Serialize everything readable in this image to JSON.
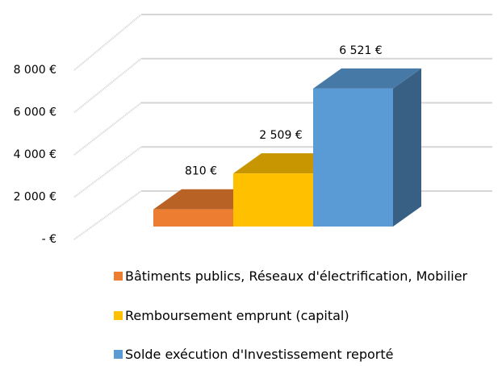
{
  "chart_data": {
    "type": "bar3d",
    "ylim": [
      0,
      8000
    ],
    "yticks": [
      {
        "value": 0,
        "label": "- €"
      },
      {
        "value": 2000,
        "label": "2 000 €"
      },
      {
        "value": 4000,
        "label": "4 000 €"
      },
      {
        "value": 6000,
        "label": "6 000 €"
      },
      {
        "value": 8000,
        "label": "8 000 €"
      }
    ],
    "grid": true,
    "series": [
      {
        "name": "Bâtiments publics, Réseaux d'électrification, Mobilier",
        "color": "#ed7d31",
        "values": [
          810
        ],
        "value_labels": [
          "810 €"
        ]
      },
      {
        "name": "Remboursement emprunt (capital)",
        "color": "#ffc000",
        "values": [
          2509
        ],
        "value_labels": [
          "2 509 €"
        ]
      },
      {
        "name": "Solde exécution d'Investissement reporté",
        "color": "#5b9bd5",
        "values": [
          6521
        ],
        "value_labels": [
          "6 521 €"
        ]
      }
    ]
  }
}
